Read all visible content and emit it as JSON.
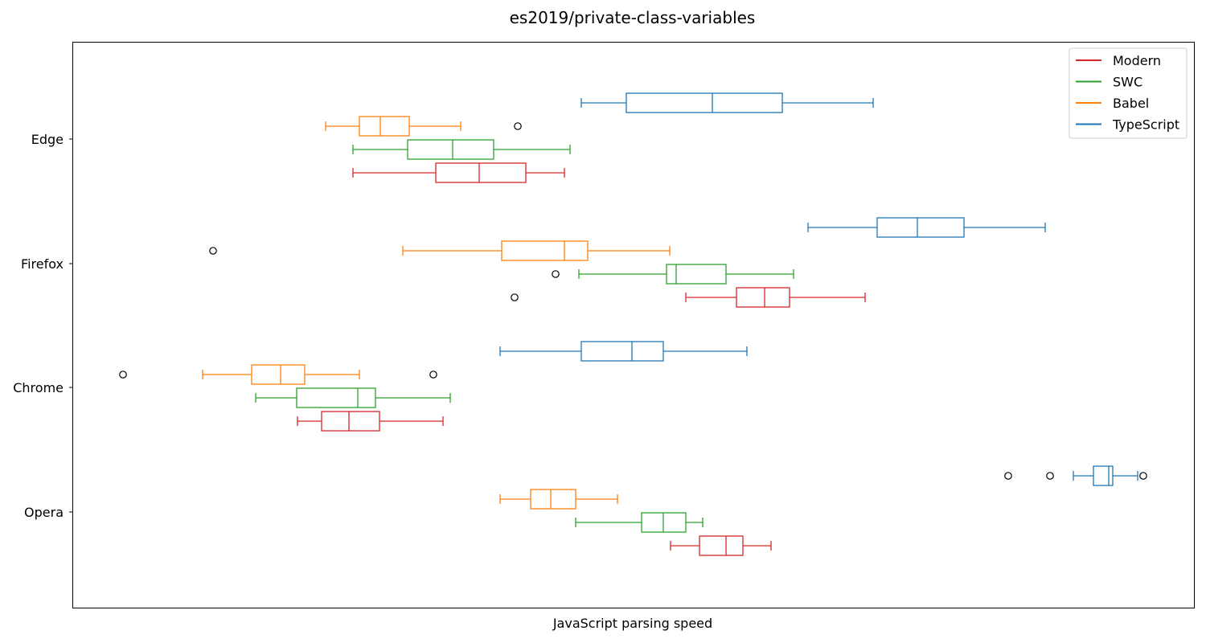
{
  "chart_data": {
    "type": "boxplot",
    "orientation": "horizontal",
    "title": "es2019/private-class-variables",
    "xlabel": "JavaScript parsing speed",
    "ylabel": "",
    "x_ticks_shown": false,
    "grid": false,
    "legend_position": "top-right",
    "categories": [
      "Edge",
      "Firefox",
      "Chrome",
      "Opera"
    ],
    "series": [
      {
        "name": "Modern",
        "color": "#d62728",
        "boxes": [
          {
            "category": "Edge",
            "whisker_low": 439,
            "q1": 542,
            "median": 596,
            "q3": 654,
            "whisker_high": 702,
            "outliers": []
          },
          {
            "category": "Firefox",
            "whisker_low": 853,
            "q1": 916,
            "median": 951,
            "q3": 982,
            "whisker_high": 1076,
            "outliers": [
              640
            ]
          },
          {
            "category": "Chrome",
            "whisker_low": 370,
            "q1": 400,
            "median": 434,
            "q3": 472,
            "whisker_high": 551,
            "outliers": []
          },
          {
            "category": "Opera",
            "whisker_low": 834,
            "q1": 870,
            "median": 903,
            "q3": 924,
            "whisker_high": 959,
            "outliers": []
          }
        ]
      },
      {
        "name": "SWC",
        "color": "#2ca02c",
        "boxes": [
          {
            "category": "Edge",
            "whisker_low": 439,
            "q1": 507,
            "median": 563,
            "q3": 614,
            "whisker_high": 709,
            "outliers": []
          },
          {
            "category": "Firefox",
            "whisker_low": 720,
            "q1": 829,
            "median": 841,
            "q3": 903,
            "whisker_high": 987,
            "outliers": [
              691
            ]
          },
          {
            "category": "Chrome",
            "whisker_low": 318,
            "q1": 369,
            "median": 445,
            "q3": 467,
            "whisker_high": 560,
            "outliers": []
          },
          {
            "category": "Opera",
            "whisker_low": 716,
            "q1": 798,
            "median": 825,
            "q3": 853,
            "whisker_high": 874,
            "outliers": []
          }
        ]
      },
      {
        "name": "Babel",
        "color": "#ff7f0e",
        "boxes": [
          {
            "category": "Edge",
            "whisker_low": 405,
            "q1": 447,
            "median": 473,
            "q3": 509,
            "whisker_high": 573,
            "outliers": [
              644
            ]
          },
          {
            "category": "Firefox",
            "whisker_low": 501,
            "q1": 624,
            "median": 702,
            "q3": 731,
            "whisker_high": 833,
            "outliers": [
              265
            ]
          },
          {
            "category": "Chrome",
            "whisker_low": 252,
            "q1": 313,
            "median": 349,
            "q3": 379,
            "whisker_high": 447,
            "outliers": [
              153,
              539
            ]
          },
          {
            "category": "Opera",
            "whisker_low": 622,
            "q1": 660,
            "median": 685,
            "q3": 716,
            "whisker_high": 768,
            "outliers": []
          }
        ]
      },
      {
        "name": "TypeScript",
        "color": "#1f77b4",
        "boxes": [
          {
            "category": "Edge",
            "whisker_low": 723,
            "q1": 779,
            "median": 886,
            "q3": 973,
            "whisker_high": 1086,
            "outliers": []
          },
          {
            "category": "Firefox",
            "whisker_low": 1005,
            "q1": 1091,
            "median": 1141,
            "q3": 1199,
            "whisker_high": 1300,
            "outliers": []
          },
          {
            "category": "Chrome",
            "whisker_low": 622,
            "q1": 723,
            "median": 786,
            "q3": 825,
            "whisker_high": 929,
            "outliers": []
          },
          {
            "category": "Opera",
            "whisker_low": 1335,
            "q1": 1360,
            "median": 1379,
            "q3": 1384,
            "whisker_high": 1415,
            "outliers": [
              1254,
              1306,
              1422
            ]
          }
        ]
      }
    ],
    "legend": [
      {
        "name": "Modern",
        "color": "#d62728"
      },
      {
        "name": "SWC",
        "color": "#2ca02c"
      },
      {
        "name": "Babel",
        "color": "#ff7f0e"
      },
      {
        "name": "TypeScript",
        "color": "#1f77b4"
      }
    ]
  }
}
